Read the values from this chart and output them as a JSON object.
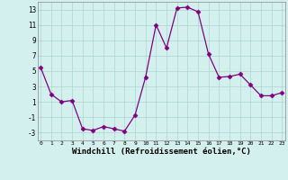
{
  "x": [
    0,
    1,
    2,
    3,
    4,
    5,
    6,
    7,
    8,
    9,
    10,
    11,
    12,
    13,
    14,
    15,
    16,
    17,
    18,
    19,
    20,
    21,
    22,
    23
  ],
  "y": [
    5.5,
    2.0,
    1.0,
    1.2,
    -2.5,
    -2.7,
    -2.2,
    -2.5,
    -2.8,
    -0.7,
    4.2,
    11.0,
    8.0,
    13.2,
    13.3,
    12.7,
    7.2,
    4.2,
    4.3,
    4.6,
    3.2,
    1.8,
    1.8,
    2.2
  ],
  "line_color": "#800080",
  "marker": "D",
  "marker_size": 2.5,
  "bg_color": "#d4f0ee",
  "grid_color": "#a8d8cc",
  "xlabel": "Windchill (Refroidissement éolien,°C)",
  "xlabel_fontsize": 6.5,
  "yticks": [
    -3,
    -1,
    1,
    3,
    5,
    7,
    9,
    11,
    13
  ],
  "xtick_labels": [
    "0",
    "1",
    "2",
    "3",
    "4",
    "5",
    "6",
    "7",
    "8",
    "9",
    "1011",
    "1213",
    "1415",
    "1617",
    "1819",
    "2021",
    "2223"
  ],
  "xlim": [
    -0.3,
    23.3
  ],
  "ylim": [
    -4,
    14
  ]
}
